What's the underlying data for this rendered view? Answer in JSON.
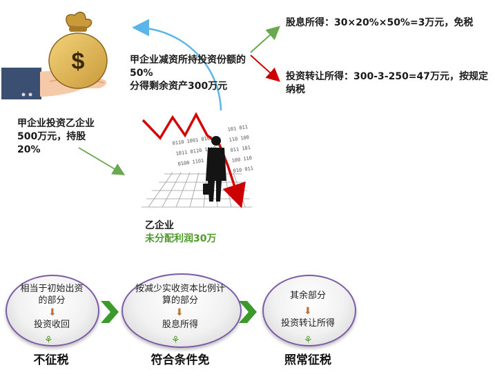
{
  "top": {
    "investor_note": "甲企业投资乙企业500万元，持股20%",
    "reduction_note_line1": "甲企业减资所持投资份额的50%",
    "reduction_note_line2": "分得剩余资产300万元",
    "company_name": "乙企业",
    "undistributed_profit": "未分配利润30万",
    "dividend_income": "股息所得：30×20%×50%=3万元，免税",
    "transfer_income": "投资转让所得：300-3-250=47万元，按规定纳税",
    "money_bag_symbol": "$"
  },
  "bottom": {
    "stages": [
      {
        "top_text": "相当于初始出资的部分",
        "bottom_text": "投资收回",
        "caption": "不征税"
      },
      {
        "top_text": "按减少实收资本比例计算的部分",
        "bottom_text": "股息所得",
        "caption": "符合条件免"
      },
      {
        "top_text": "其余部分",
        "bottom_text": "投资转让所得",
        "caption": "照常征税"
      }
    ]
  },
  "colors": {
    "green_arrow": "#6aa84f",
    "red_arrow": "#cc0000",
    "blue_arrow": "#5bb5e8",
    "circle_border": "#7c5aa6",
    "chevron": "#3c9a2c",
    "down_arrow": "#c0703a",
    "highlight_text": "#4e9a2a"
  },
  "icons": [
    "money-bag-icon",
    "hand-icon",
    "businessman-icon",
    "falling-chart-icon",
    "sprout-icon",
    "chevron-right-icon",
    "down-arrow-icon"
  ]
}
